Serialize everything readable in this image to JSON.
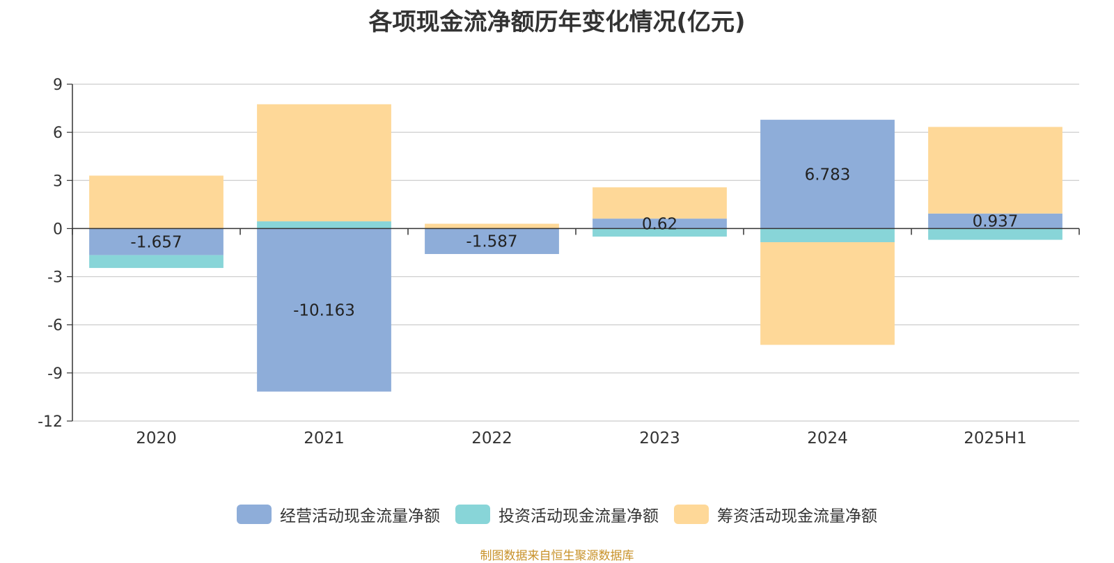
{
  "chart_data": {
    "type": "bar",
    "stacked": true,
    "title": "各项现金流净额历年变化情况(亿元)",
    "categories": [
      "2020",
      "2021",
      "2022",
      "2023",
      "2024",
      "2025H1"
    ],
    "series": [
      {
        "name": "经营活动现金流量净额",
        "color": "#8eadd9",
        "values": [
          -1.657,
          -10.163,
          -1.587,
          0.62,
          6.783,
          0.937
        ],
        "labels": [
          "-1.657",
          "-10.163",
          "-1.587",
          "0.62",
          "6.783",
          "0.937"
        ]
      },
      {
        "name": "投资活动现金流量净额",
        "color": "#88d5d8",
        "values": [
          -0.8,
          0.45,
          0.0,
          -0.5,
          -0.85,
          -0.7
        ]
      },
      {
        "name": "筹资活动现金流量净额",
        "color": "#fed898",
        "values": [
          3.3,
          7.3,
          0.3,
          1.95,
          -6.4,
          5.4
        ]
      }
    ],
    "ylim": [
      -12,
      9
    ],
    "yticks": [
      9,
      6,
      3,
      0,
      -3,
      -6,
      -9,
      -12
    ],
    "ytick_labels": [
      "9",
      "6",
      "3",
      "0",
      "-3",
      "-6",
      "-9",
      "-12"
    ],
    "grid": true,
    "legend": "bottom-center",
    "source": "制图数据来自恒生聚源数据库"
  }
}
